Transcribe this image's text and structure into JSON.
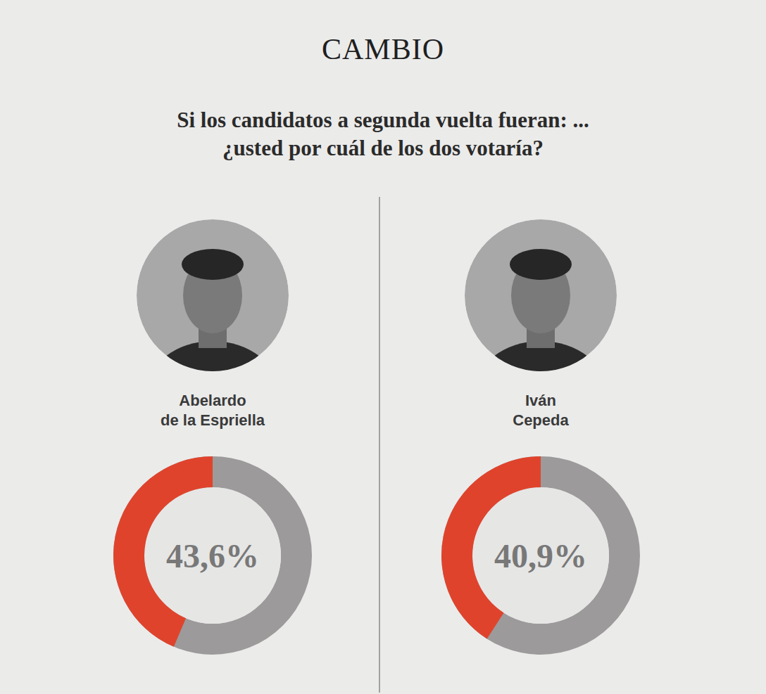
{
  "brand": "CAMBIO",
  "chart_data": {
    "type": "donut",
    "title": "Si los candidatos a segunda vuelta fueran: ... ¿usted por cuál de los dos votaría?",
    "categories": [
      "Abelardo\nde la Espriella",
      "Iván\nCepeda"
    ],
    "values": [
      43.6,
      40.9
    ],
    "value_labels": [
      "43,6%",
      "40,9%"
    ],
    "ylim": [
      0,
      100
    ],
    "color": "#e0432c",
    "data_labels": true,
    "tick_labels": false
  }
}
